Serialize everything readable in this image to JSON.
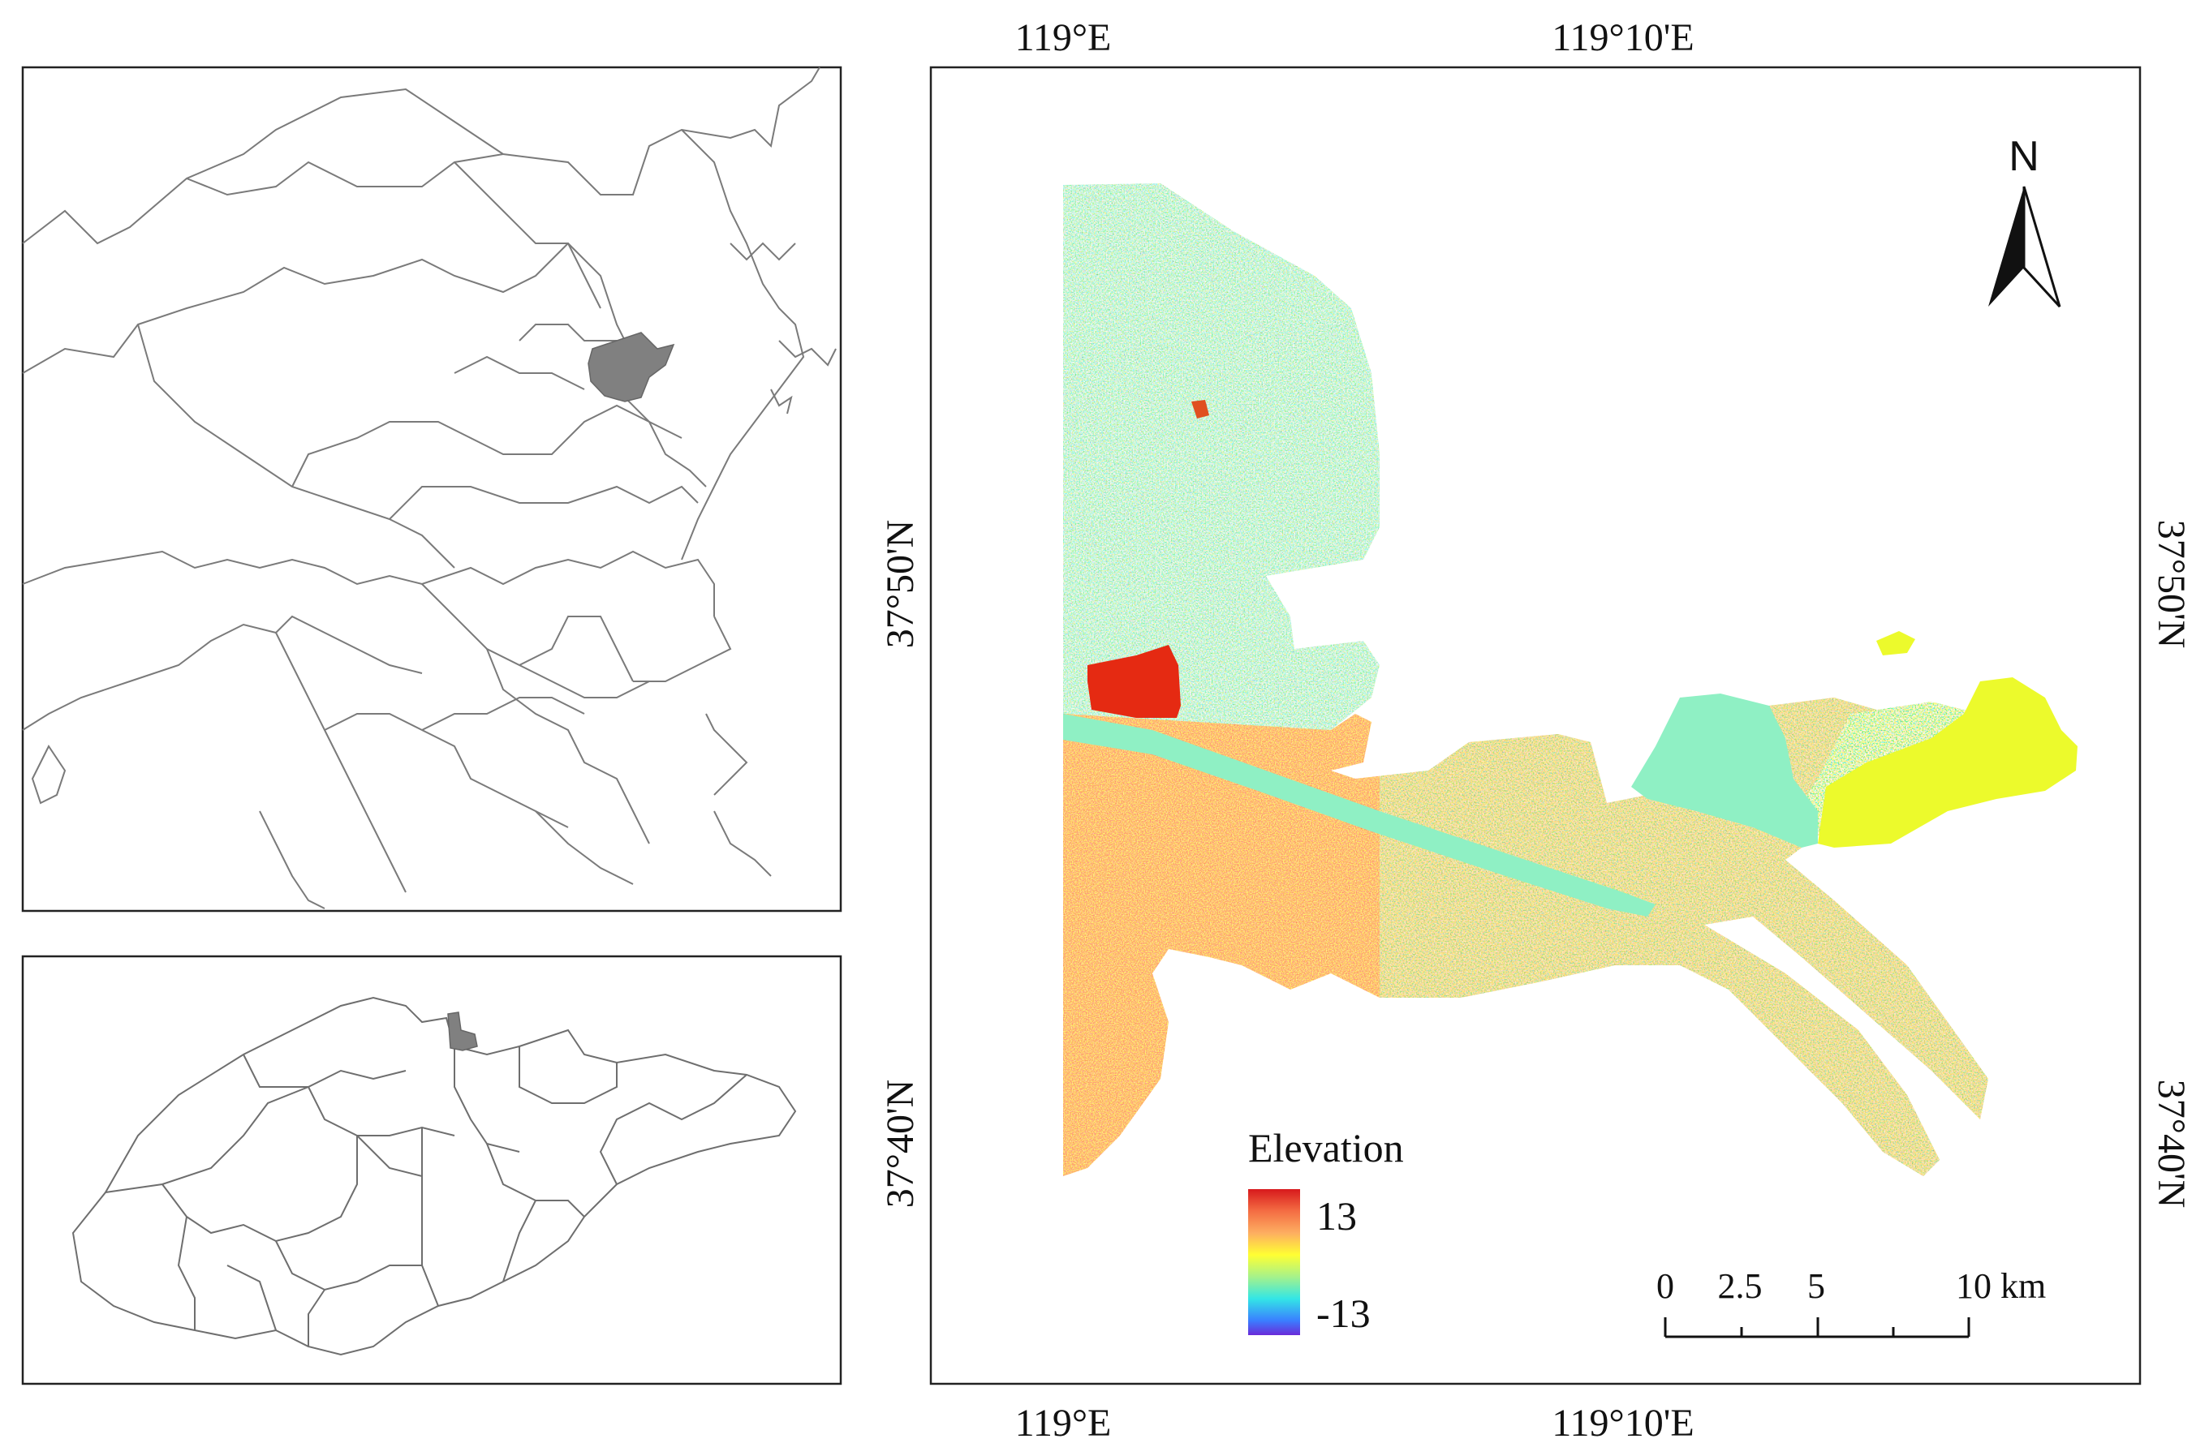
{
  "map": {
    "lon_ticks": [
      "119°E",
      "119°10'E"
    ],
    "lat_ticks": [
      "37°50'N",
      "37°40'N"
    ],
    "north_arrow_label": "N",
    "legend": {
      "title": "Elevation",
      "high_label": "13",
      "low_label": "-13",
      "colors": [
        "#d7191c",
        "#f46d43",
        "#fdae61",
        "#ffff33",
        "#a6f28a",
        "#33e6e6",
        "#3a7fff",
        "#6a2bd9"
      ]
    },
    "scale_bar": {
      "labels": [
        "0",
        "2.5",
        "5",
        "10 km"
      ]
    },
    "colors": {
      "inset_highlight": "#808080",
      "boundary": "#7a7a7a",
      "frame": "#222222",
      "flat_east_lobe": "#ecfa2c",
      "flat_mid_lobe": "#8ff0c4",
      "reservoir": "#e52a12"
    }
  }
}
